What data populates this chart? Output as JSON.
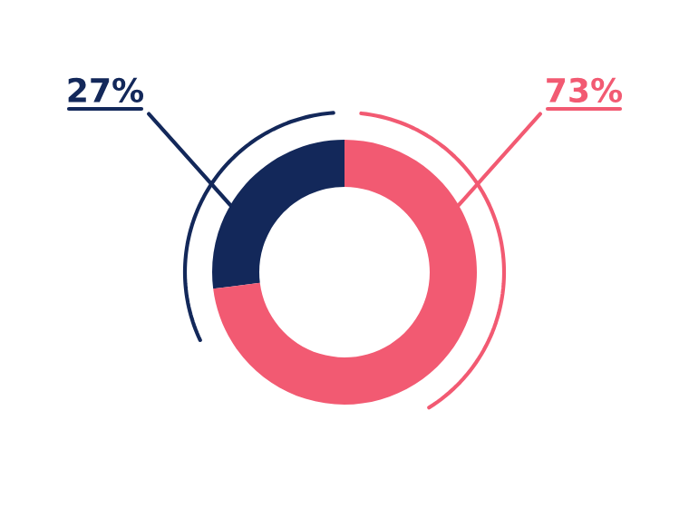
{
  "chart_data": {
    "type": "donut",
    "categories": [
      null,
      null
    ],
    "values": [
      27,
      73
    ],
    "colors": [
      "#13285a",
      "#f25a72"
    ],
    "value_labels": [
      "27%",
      "73%"
    ],
    "legend": false
  }
}
